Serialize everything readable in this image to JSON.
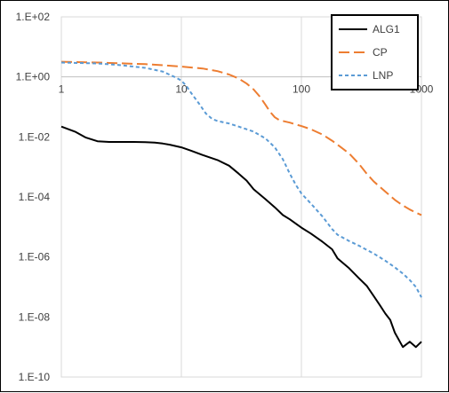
{
  "chart_data": {
    "type": "line",
    "x_scale": "log",
    "y_scale": "log",
    "xlim": [
      1,
      1000
    ],
    "ylim": [
      1e-10,
      100
    ],
    "grid": {
      "x": true,
      "y": false
    },
    "legend_position": "top-right",
    "x_tick_labels": [
      {
        "value": 1,
        "label": "1"
      },
      {
        "value": 10,
        "label": "10"
      },
      {
        "value": 100,
        "label": "100"
      },
      {
        "value": 1000,
        "label": "1000"
      }
    ],
    "y_tick_labels": [
      {
        "value": 100,
        "label": "1.E+02"
      },
      {
        "value": 1,
        "label": "1.E+00"
      },
      {
        "value": 0.01,
        "label": "1.E-02"
      },
      {
        "value": 0.0001,
        "label": "1.E-04"
      },
      {
        "value": 1e-06,
        "label": "1.E-06"
      },
      {
        "value": 1e-08,
        "label": "1.E-08"
      },
      {
        "value": 1e-10,
        "label": "1.E-10"
      }
    ],
    "series": [
      {
        "name": "ALG1",
        "color": "#000000",
        "dash": "solid",
        "x": [
          1,
          1.3,
          1.6,
          2,
          2.5,
          3,
          4,
          5,
          6,
          7,
          8,
          10,
          12,
          15,
          20,
          25,
          30,
          35,
          40,
          50,
          60,
          70,
          80,
          100,
          120,
          150,
          180,
          200,
          250,
          300,
          350,
          400,
          450,
          500,
          550,
          600,
          700,
          800,
          900,
          1000
        ],
        "y": [
          0.022,
          0.015,
          0.0095,
          0.0072,
          0.0068,
          0.0068,
          0.0068,
          0.0067,
          0.0065,
          0.006,
          0.0055,
          0.0045,
          0.0035,
          0.0025,
          0.0017,
          0.0011,
          0.0006,
          0.00035,
          0.00018,
          8.5e-05,
          4.5e-05,
          2.5e-05,
          1.8e-05,
          9.5e-06,
          6e-06,
          3.2e-06,
          1.8e-06,
          9e-07,
          4.2e-07,
          2e-07,
          1.1e-07,
          5e-08,
          2.5e-08,
          1.3e-08,
          8e-09,
          3e-09,
          1e-09,
          1.5e-09,
          1e-09,
          1.5e-09
        ]
      },
      {
        "name": "CP",
        "color": "#ED7D31",
        "dash": "long-dash",
        "x": [
          1,
          2,
          3,
          5,
          7,
          10,
          15,
          20,
          25,
          30,
          35,
          40,
          45,
          50,
          55,
          60,
          65,
          70,
          80,
          90,
          100,
          120,
          150,
          180,
          200,
          250,
          300,
          350,
          400,
          500,
          600,
          700,
          800,
          900,
          1000
        ],
        "y": [
          3.2,
          3.0,
          2.85,
          2.65,
          2.45,
          2.2,
          1.9,
          1.55,
          1.2,
          0.88,
          0.6,
          0.38,
          0.22,
          0.12,
          0.068,
          0.045,
          0.037,
          0.034,
          0.03,
          0.026,
          0.023,
          0.018,
          0.012,
          0.0075,
          0.0055,
          0.0028,
          0.0013,
          0.0006,
          0.00033,
          0.00015,
          8e-05,
          5.2e-05,
          3.8e-05,
          3e-05,
          2.5e-05
        ]
      },
      {
        "name": "LNP",
        "color": "#5B9BD5",
        "dash": "short-dash",
        "x": [
          1,
          2,
          3,
          5,
          7,
          9,
          10,
          11,
          12,
          14,
          16,
          18,
          20,
          25,
          30,
          40,
          50,
          60,
          70,
          80,
          90,
          100,
          120,
          150,
          180,
          200,
          250,
          300,
          400,
          500,
          600,
          700,
          800,
          900,
          1000
        ],
        "y": [
          3.0,
          2.8,
          2.5,
          2.0,
          1.5,
          0.95,
          0.75,
          0.5,
          0.3,
          0.13,
          0.06,
          0.04,
          0.034,
          0.028,
          0.022,
          0.015,
          0.009,
          0.0045,
          0.0018,
          0.0006,
          0.00025,
          0.00013,
          6e-05,
          2.2e-05,
          8.5e-06,
          5.5e-06,
          3.4e-06,
          2.4e-06,
          1.3e-06,
          7.5e-07,
          4.5e-07,
          2.8e-07,
          1.7e-07,
          1e-07,
          4.5e-08
        ]
      }
    ]
  }
}
